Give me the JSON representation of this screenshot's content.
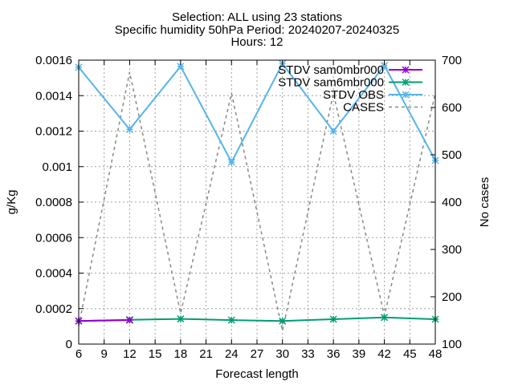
{
  "chart_data": {
    "type": "line",
    "title_lines": [
      "Selection: ALL using    23 stations",
      "Specific humidity 50hPa   Period: 20240207-20240325",
      "Hours: 12"
    ],
    "xlabel": "Forecast length",
    "ylabel": "g/Kg",
    "y2label": "No cases",
    "xlim": [
      6,
      48
    ],
    "ylim": [
      0,
      0.0016
    ],
    "y2lim": [
      100,
      700
    ],
    "x_ticks": [
      6,
      9,
      12,
      15,
      18,
      21,
      24,
      27,
      30,
      33,
      36,
      39,
      42,
      45,
      48
    ],
    "y_ticks": [
      0,
      0.0002,
      0.0004,
      0.0006,
      0.0008,
      0.001,
      0.0012,
      0.0014,
      0.0016
    ],
    "y_tick_labels": [
      "0",
      "0.0002",
      "0.0004",
      "0.0006",
      "0.0008",
      "0.001",
      "0.0012",
      "0.0014",
      "0.0016"
    ],
    "y2_ticks": [
      100,
      200,
      300,
      400,
      500,
      600,
      700
    ],
    "grid": true,
    "legend_position": "top-right",
    "series": [
      {
        "name": "STDV sam0mbr000",
        "axis": "y1",
        "color": "#9400d3",
        "marker": "x",
        "x": [
          6,
          12
        ],
        "values": [
          0.00013,
          0.000135
        ]
      },
      {
        "name": "STDV sam6mbr000",
        "axis": "y1",
        "color": "#009e73",
        "marker": "x",
        "x": [
          6,
          12,
          18,
          24,
          30,
          36,
          42,
          48
        ],
        "values": [
          0.00013,
          0.000137,
          0.000142,
          0.000135,
          0.00013,
          0.00014,
          0.00015,
          0.00014
        ]
      },
      {
        "name": "STDV OBS",
        "axis": "y1",
        "color": "#56b4e9",
        "marker": "x",
        "x": [
          6,
          12,
          18,
          24,
          30,
          36,
          42,
          48
        ],
        "values": [
          0.00156,
          0.00121,
          0.001565,
          0.001025,
          0.00158,
          0.0012,
          0.00157,
          0.001035
        ]
      },
      {
        "name": "CASES",
        "axis": "y2",
        "color": "#888888",
        "dash": true,
        "x": [
          6,
          12,
          18,
          24,
          30,
          36,
          42,
          48
        ],
        "values": [
          138,
          675,
          165,
          630,
          128,
          630,
          160,
          630
        ]
      }
    ]
  }
}
